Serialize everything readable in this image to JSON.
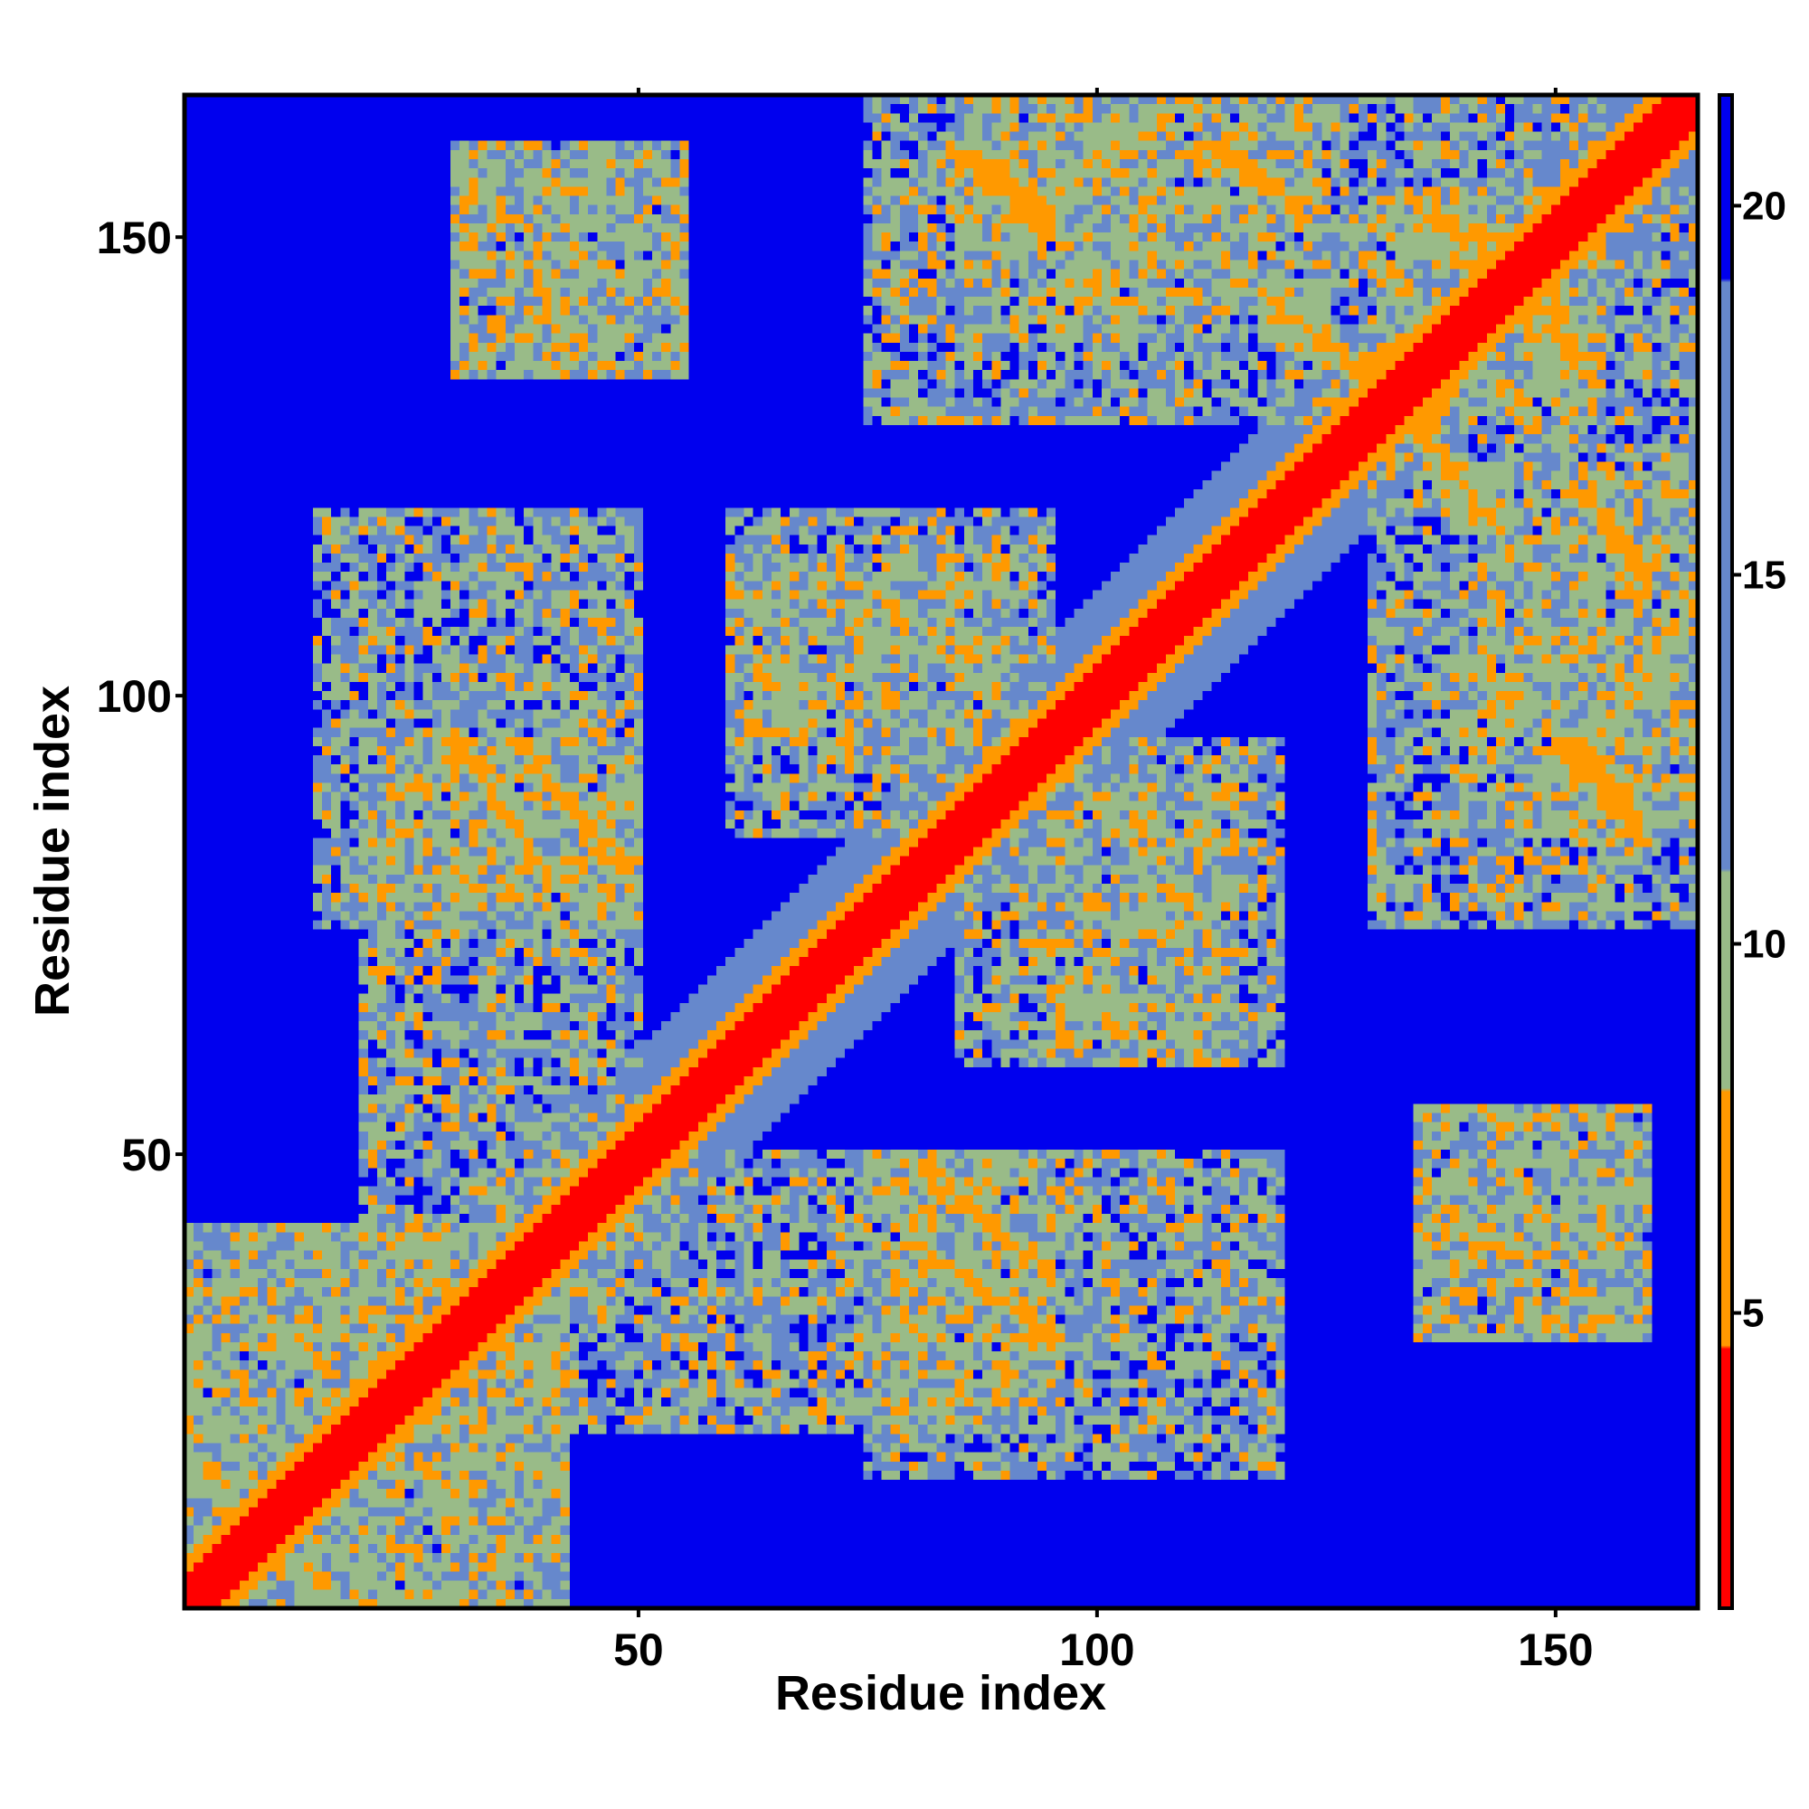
{
  "chart_data": {
    "type": "heatmap",
    "title": "",
    "xlabel": "Residue index",
    "ylabel": "Residue index",
    "n_residues": 165,
    "xlim": [
      1,
      165
    ],
    "ylim": [
      1,
      165
    ],
    "xticks": [
      50,
      100,
      150
    ],
    "yticks": [
      50,
      100,
      150
    ],
    "xtick_labels": [
      "50",
      "100",
      "150"
    ],
    "ytick_labels": [
      "50",
      "100",
      "150"
    ],
    "colorbar": {
      "range": [
        1,
        21.5
      ],
      "ticks": [
        5,
        10,
        15,
        20
      ],
      "tick_labels": [
        "5",
        "10",
        "15",
        "20"
      ],
      "colors": [
        {
          "max": 4.5,
          "color": "#ff0000"
        },
        {
          "max": 8,
          "color": "#ff9900"
        },
        {
          "max": 11,
          "color": "#99bb88"
        },
        {
          "max": 19,
          "color": "#6688cc"
        },
        {
          "max": 21.5,
          "color": "#0000ee"
        }
      ]
    },
    "symmetric": true,
    "diagonal_distance": 1,
    "background_distance": 21,
    "contact_regions": [
      {
        "x": [
          1,
          42
        ],
        "y": [
          1,
          42
        ],
        "level": "medium"
      },
      {
        "x": [
          40,
          95
        ],
        "y": [
          20,
          50
        ],
        "level": "medium"
      },
      {
        "x": [
          15,
          50
        ],
        "y": [
          75,
          120
        ],
        "level": "medium"
      },
      {
        "x": [
          30,
          55
        ],
        "y": [
          135,
          160
        ],
        "level": "medium"
      },
      {
        "x": [
          60,
          95
        ],
        "y": [
          95,
          120
        ],
        "level": "medium"
      },
      {
        "x": [
          85,
          115
        ],
        "y": [
          60,
          90
        ],
        "level": "medium"
      },
      {
        "x": [
          75,
          155
        ],
        "y": [
          130,
          165
        ],
        "level": "medium"
      },
      {
        "x": [
          135,
          160
        ],
        "y": [
          30,
          55
        ],
        "level": "medium"
      },
      {
        "x": [
          140,
          165
        ],
        "y": [
          85,
          125
        ],
        "level": "medium"
      }
    ],
    "strong_contacts": [
      {
        "x": [
          84,
          95
        ],
        "y": [
          152,
          160
        ],
        "level": "strong"
      },
      {
        "x": [
          114,
          122
        ],
        "y": [
          153,
          160
        ],
        "level": "strong"
      },
      {
        "x": [
          137,
          150
        ],
        "y": [
          144,
          152
        ],
        "level": "strong"
      },
      {
        "x": [
          150,
          158
        ],
        "y": [
          87,
          95
        ],
        "level": "strong"
      },
      {
        "x": [
          155,
          160
        ],
        "y": [
          113,
          118
        ],
        "level": "strong"
      },
      {
        "x": [
          81,
          95
        ],
        "y": [
          37,
          48
        ],
        "level": "strong"
      },
      {
        "x": [
          30,
          40
        ],
        "y": [
          80,
          95
        ],
        "level": "strong"
      },
      {
        "x": [
          120,
          130
        ],
        "y": [
          135,
          142
        ],
        "level": "strong"
      }
    ]
  }
}
